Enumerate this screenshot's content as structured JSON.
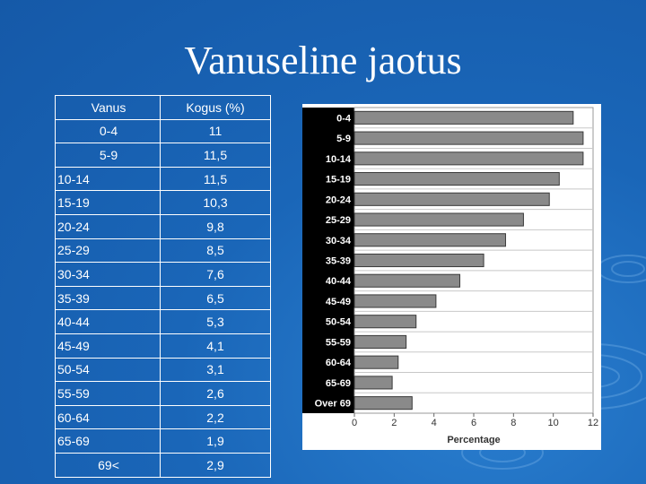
{
  "title": "Vanuseline jaotus",
  "table": {
    "headers": [
      "Vanus",
      "Kogus (%)"
    ],
    "rows": [
      [
        "0-4",
        "11"
      ],
      [
        "5-9",
        "11,5"
      ],
      [
        "10-14",
        "11,5"
      ],
      [
        "15-19",
        "10,3"
      ],
      [
        "20-24",
        "9,8"
      ],
      [
        "25-29",
        "8,5"
      ],
      [
        "30-34",
        "7,6"
      ],
      [
        "35-39",
        "6,5"
      ],
      [
        "40-44",
        "5,3"
      ],
      [
        "45-49",
        "4,1"
      ],
      [
        "50-54",
        "3,1"
      ],
      [
        "55-59",
        "2,6"
      ],
      [
        "60-64",
        "2,2"
      ],
      [
        "65-69",
        "1,9"
      ],
      [
        "69<",
        "2,9"
      ]
    ]
  },
  "chart_data": {
    "type": "bar",
    "orientation": "horizontal",
    "categories": [
      "0-4",
      "5-9",
      "10-14",
      "15-19",
      "20-24",
      "25-29",
      "30-34",
      "35-39",
      "40-44",
      "45-49",
      "50-54",
      "55-59",
      "60-64",
      "65-69",
      "Over 69"
    ],
    "values": [
      11,
      11.5,
      11.5,
      10.3,
      9.8,
      8.5,
      7.6,
      6.5,
      5.3,
      4.1,
      3.1,
      2.6,
      2.2,
      1.9,
      2.9
    ],
    "xlabel": "Percentage",
    "ylabel": "",
    "xlim": [
      0,
      12
    ],
    "xticks": [
      0,
      2,
      4,
      6,
      8,
      10,
      12
    ],
    "grid": true,
    "colors": {
      "bar": "#8a8a8a",
      "bar_stroke": "#3a3a3a",
      "label_bg": "#000000",
      "label_text": "#ffffff"
    }
  }
}
